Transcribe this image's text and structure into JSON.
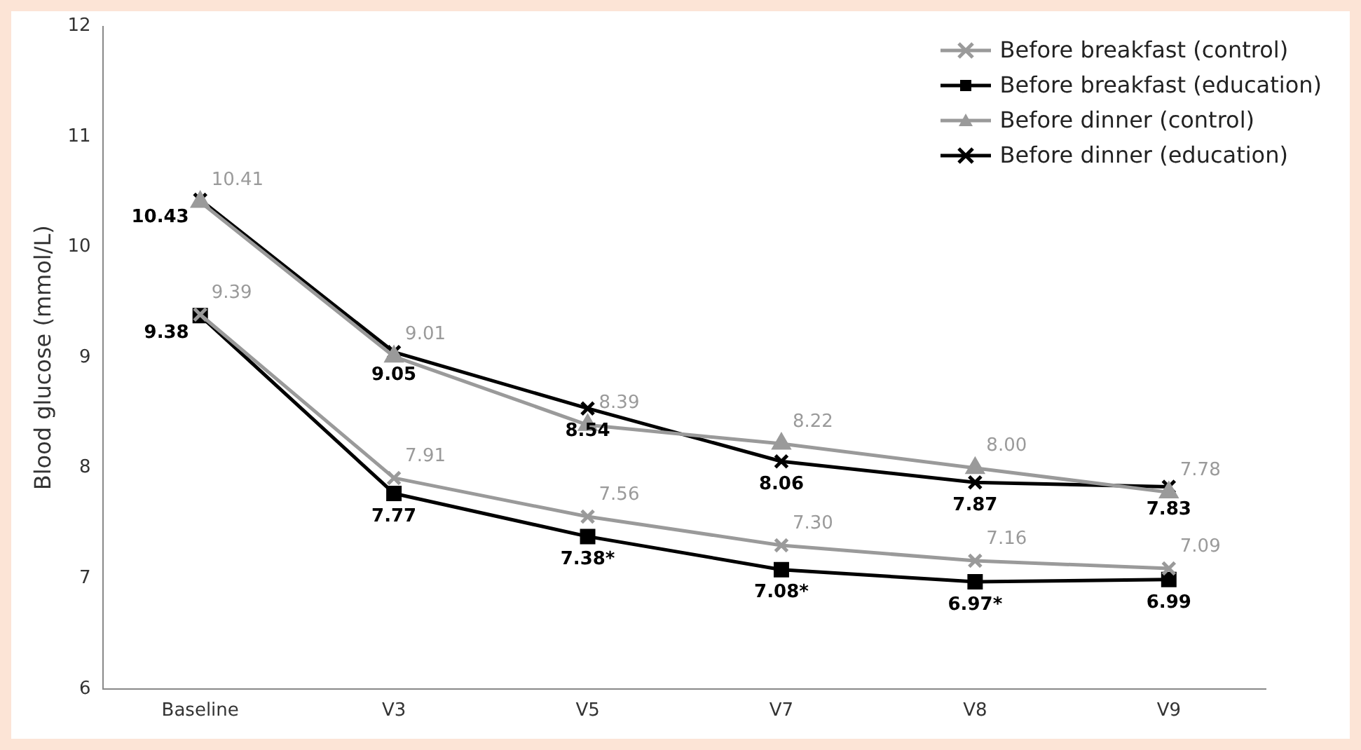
{
  "chart_data": {
    "type": "line",
    "ylabel": "Blood glucose (mmol/L)",
    "categories": [
      "Baseline",
      "V3",
      "V5",
      "V7",
      "V8",
      "V9"
    ],
    "ylim": [
      6,
      12
    ],
    "yticks": [
      6,
      7,
      8,
      9,
      10,
      11,
      12
    ],
    "grid": false,
    "legend": "top right",
    "series": [
      {
        "name": "Before breakfast (control)",
        "color": "#9a9a9a",
        "marker": "cross",
        "values": [
          9.39,
          7.91,
          7.56,
          7.3,
          7.16,
          7.09
        ],
        "value_labels": [
          "9.39",
          "7.91",
          "7.56",
          "7.30",
          "7.16",
          "7.09"
        ]
      },
      {
        "name": "Before breakfast (education)",
        "color": "#000000",
        "marker": "square",
        "values": [
          9.38,
          7.77,
          7.38,
          7.08,
          6.97,
          6.99
        ],
        "value_labels": [
          "9.38",
          "7.77",
          "7.38*",
          "7.08*",
          "6.97*",
          "6.99"
        ]
      },
      {
        "name": "Before dinner (control)",
        "color": "#9a9a9a",
        "marker": "triangle",
        "values": [
          10.41,
          9.01,
          8.39,
          8.22,
          8.0,
          7.78
        ],
        "value_labels": [
          "10.41",
          "9.01",
          "8.39",
          "8.22",
          "8.00",
          "7.78"
        ]
      },
      {
        "name": "Before dinner (education)",
        "color": "#000000",
        "marker": "cross",
        "values": [
          10.43,
          9.05,
          8.54,
          8.06,
          7.87,
          7.83
        ],
        "value_labels": [
          "10.43",
          "9.05",
          "8.54",
          "8.06",
          "7.87",
          "7.83"
        ]
      }
    ]
  }
}
